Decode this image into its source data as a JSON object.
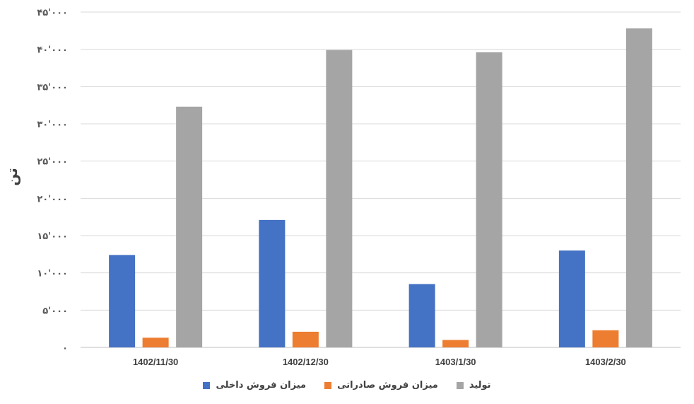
{
  "chart_data": {
    "type": "bar",
    "ylabel": "تن",
    "categories": [
      "1402/11/30",
      "1402/12/30",
      "1403/1/30",
      "1403/2/30"
    ],
    "yticks": [
      "۰",
      "۵'۰۰۰",
      "۱۰'۰۰۰",
      "۱۵'۰۰۰",
      "۲۰'۰۰۰",
      "۲۵'۰۰۰",
      "۳۰'۰۰۰",
      "۳۵'۰۰۰",
      "۴۰'۰۰۰",
      "۴۵'۰۰۰"
    ],
    "ylim": [
      0,
      45000
    ],
    "grid": true,
    "legend_position": "bottom",
    "series": [
      {
        "name": "میزان فروش داخلی",
        "color": "#4472C4",
        "values": [
          12400,
          17100,
          8500,
          13000
        ]
      },
      {
        "name": "میزان فروش صادراتی",
        "color": "#ED7D31",
        "values": [
          1300,
          2100,
          1000,
          2300
        ]
      },
      {
        "name": "تولید",
        "color": "#A5A5A5",
        "values": [
          32300,
          39900,
          39600,
          42800
        ]
      }
    ]
  }
}
